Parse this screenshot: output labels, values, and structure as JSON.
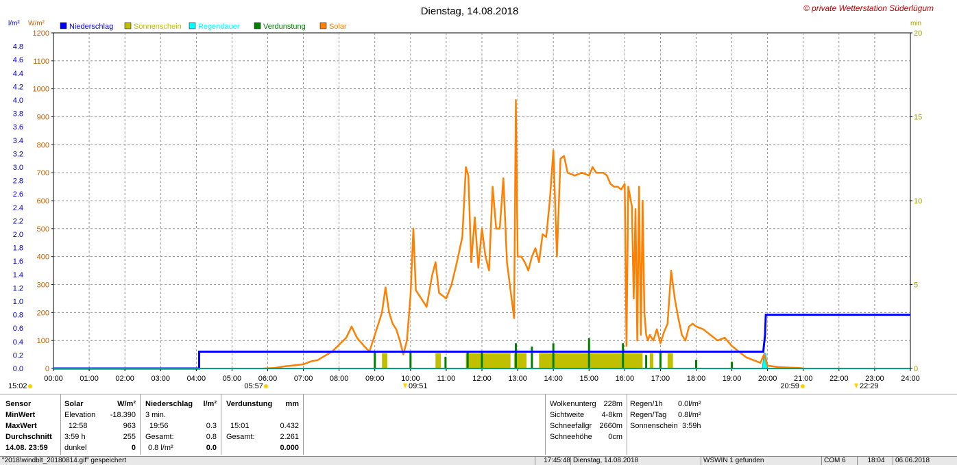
{
  "chart_data": {
    "type": "line",
    "title": "Dienstag, 14.08.2018",
    "copyright": "© private Wetterstation Süderlügum",
    "axes": {
      "left1_unit": "l/m²",
      "left2_unit": "W/m²",
      "right_unit": "min",
      "left1_ticks": [
        "4.8",
        "4.6",
        "4.4",
        "4.2",
        "4.0",
        "3.8",
        "3.6",
        "3.4",
        "3.2",
        "3.0",
        "2.8",
        "2.6",
        "2.4",
        "2.2",
        "2.0",
        "1.8",
        "1.6",
        "1.4",
        "1.2",
        "1.0",
        "0.8",
        "0.6",
        "0.4",
        "0.2",
        "0.0"
      ],
      "left1_range": [
        0,
        5.0
      ],
      "left2_ticks": [
        "1200",
        "1100",
        "1000",
        "900",
        "800",
        "700",
        "600",
        "500",
        "400",
        "300",
        "200",
        "100",
        "0"
      ],
      "left2_range": [
        0,
        1200
      ],
      "right_ticks": [
        "20",
        "15",
        "10",
        "5",
        "0"
      ],
      "right_range": [
        0,
        20
      ],
      "x_ticks": [
        "00:00",
        "01:00",
        "02:00",
        "03:00",
        "04:00",
        "05:00",
        "06:00",
        "07:00",
        "08:00",
        "09:00",
        "10:00",
        "11:00",
        "12:00",
        "13:00",
        "14:00",
        "15:00",
        "16:00",
        "17:00",
        "18:00",
        "19:00",
        "20:00",
        "21:00",
        "22:00",
        "23:00",
        "24:00"
      ],
      "x_range_hours": [
        0,
        24
      ],
      "grid": true
    },
    "legend": [
      {
        "name": "Niederschlag",
        "color": "#0000ff"
      },
      {
        "name": "Sonnenschein",
        "color": "#c0c000"
      },
      {
        "name": "Regendauer",
        "color": "#00ffff"
      },
      {
        "name": "Verdunstung",
        "color": "#008000"
      },
      {
        "name": "Solar",
        "color": "#ff8000"
      }
    ],
    "annotations": {
      "moonrise": "15:02",
      "sunrise": "05:57",
      "solar_noon": "09:51",
      "sunset": "20:59",
      "moonset": "22:29"
    },
    "niederschlag": [
      [
        0,
        0
      ],
      [
        4.08,
        0
      ],
      [
        4.08,
        0.25
      ],
      [
        19.88,
        0.25
      ],
      [
        19.93,
        0.5
      ],
      [
        19.95,
        0.8
      ],
      [
        24,
        0.8
      ]
    ],
    "solar": [
      [
        5.9,
        0
      ],
      [
        6.2,
        2
      ],
      [
        6.5,
        8
      ],
      [
        6.8,
        12
      ],
      [
        7.0,
        15
      ],
      [
        7.2,
        25
      ],
      [
        7.4,
        30
      ],
      [
        7.6,
        45
      ],
      [
        7.8,
        60
      ],
      [
        8.0,
        85
      ],
      [
        8.2,
        110
      ],
      [
        8.35,
        150
      ],
      [
        8.5,
        110
      ],
      [
        8.7,
        80
      ],
      [
        8.85,
        60
      ],
      [
        9.0,
        120
      ],
      [
        9.2,
        200
      ],
      [
        9.3,
        290
      ],
      [
        9.4,
        200
      ],
      [
        9.5,
        160
      ],
      [
        9.6,
        140
      ],
      [
        9.7,
        100
      ],
      [
        9.8,
        50
      ],
      [
        9.9,
        100
      ],
      [
        10.0,
        260
      ],
      [
        10.08,
        500
      ],
      [
        10.15,
        280
      ],
      [
        10.3,
        250
      ],
      [
        10.45,
        220
      ],
      [
        10.6,
        330
      ],
      [
        10.7,
        380
      ],
      [
        10.8,
        270
      ],
      [
        10.9,
        260
      ],
      [
        11.0,
        250
      ],
      [
        11.15,
        300
      ],
      [
        11.3,
        380
      ],
      [
        11.45,
        470
      ],
      [
        11.55,
        720
      ],
      [
        11.62,
        690
      ],
      [
        11.7,
        380
      ],
      [
        11.8,
        540
      ],
      [
        11.9,
        360
      ],
      [
        12.0,
        500
      ],
      [
        12.1,
        400
      ],
      [
        12.2,
        350
      ],
      [
        12.3,
        650
      ],
      [
        12.4,
        500
      ],
      [
        12.5,
        500
      ],
      [
        12.6,
        680
      ],
      [
        12.7,
        380
      ],
      [
        12.8,
        280
      ],
      [
        12.9,
        180
      ],
      [
        12.95,
        960
      ],
      [
        13.0,
        400
      ],
      [
        13.1,
        400
      ],
      [
        13.2,
        380
      ],
      [
        13.3,
        350
      ],
      [
        13.4,
        400
      ],
      [
        13.5,
        430
      ],
      [
        13.6,
        380
      ],
      [
        13.7,
        480
      ],
      [
        13.8,
        470
      ],
      [
        13.9,
        600
      ],
      [
        14.0,
        780
      ],
      [
        14.1,
        400
      ],
      [
        14.2,
        750
      ],
      [
        14.3,
        760
      ],
      [
        14.4,
        700
      ],
      [
        14.6,
        690
      ],
      [
        14.8,
        700
      ],
      [
        15.0,
        690
      ],
      [
        15.1,
        720
      ],
      [
        15.2,
        700
      ],
      [
        15.4,
        700
      ],
      [
        15.5,
        690
      ],
      [
        15.6,
        660
      ],
      [
        15.7,
        650
      ],
      [
        15.8,
        650
      ],
      [
        15.9,
        640
      ],
      [
        16.0,
        660
      ],
      [
        16.05,
        80
      ],
      [
        16.1,
        650
      ],
      [
        16.2,
        580
      ],
      [
        16.25,
        250
      ],
      [
        16.3,
        570
      ],
      [
        16.35,
        100
      ],
      [
        16.4,
        650
      ],
      [
        16.45,
        120
      ],
      [
        16.5,
        600
      ],
      [
        16.55,
        200
      ],
      [
        16.6,
        120
      ],
      [
        16.65,
        100
      ],
      [
        16.7,
        120
      ],
      [
        16.8,
        100
      ],
      [
        16.9,
        140
      ],
      [
        17.0,
        90
      ],
      [
        17.1,
        130
      ],
      [
        17.2,
        160
      ],
      [
        17.3,
        350
      ],
      [
        17.4,
        250
      ],
      [
        17.5,
        180
      ],
      [
        17.6,
        120
      ],
      [
        17.7,
        100
      ],
      [
        17.8,
        150
      ],
      [
        17.9,
        160
      ],
      [
        18.0,
        150
      ],
      [
        18.2,
        140
      ],
      [
        18.4,
        120
      ],
      [
        18.6,
        100
      ],
      [
        18.8,
        110
      ],
      [
        19.0,
        80
      ],
      [
        19.2,
        60
      ],
      [
        19.4,
        40
      ],
      [
        19.6,
        30
      ],
      [
        19.8,
        20
      ],
      [
        19.9,
        50
      ],
      [
        20.0,
        10
      ],
      [
        20.3,
        5
      ],
      [
        20.6,
        3
      ],
      [
        20.9,
        2
      ],
      [
        21.0,
        0
      ]
    ],
    "sonnenschein_intervals": [
      [
        9.2,
        9.35
      ],
      [
        10.7,
        10.85
      ],
      [
        11.55,
        12.8
      ],
      [
        12.9,
        13.25
      ],
      [
        13.6,
        16.5
      ],
      [
        16.7,
        16.8
      ],
      [
        17.2,
        17.35
      ]
    ],
    "sonnenschein_height": 0.9,
    "verdunstung_spikes": [
      [
        9.0,
        1
      ],
      [
        10.0,
        1
      ],
      [
        10.98,
        0.7
      ],
      [
        11.6,
        1
      ],
      [
        12.0,
        1
      ],
      [
        12.95,
        1.5
      ],
      [
        13.4,
        1.3
      ],
      [
        14.0,
        1.5
      ],
      [
        15.0,
        1.8
      ],
      [
        15.95,
        1.5
      ],
      [
        16.6,
        0.8
      ],
      [
        17.0,
        1
      ],
      [
        18.0,
        0.5
      ],
      [
        19.0,
        0.4
      ]
    ],
    "regendauer": [
      [
        19.85,
        0
      ],
      [
        19.9,
        0.9
      ],
      [
        19.95,
        0.9
      ],
      [
        20.0,
        0
      ]
    ]
  },
  "panel": {
    "sensor": {
      "header": "Sensor",
      "rows": [
        "MinWert",
        "MaxWert",
        "Durchschnitt",
        "14.08. 23:59"
      ]
    },
    "solar": {
      "header": "Solar",
      "unit": "W/m²",
      "rows": [
        [
          "Elevation",
          "-18.390"
        ],
        [
          "12:58",
          "963"
        ],
        [
          "3:59 h",
          "255"
        ],
        [
          "dunkel",
          "0"
        ]
      ]
    },
    "niederschlag": {
      "header": "Niederschlag",
      "unit": "l/m²",
      "rows": [
        [
          "3 min.",
          ""
        ],
        [
          "19:56",
          "0.3"
        ],
        [
          "Gesamt:",
          "0.8"
        ],
        [
          "0.8 l/m²",
          "0.0"
        ]
      ]
    },
    "verdunstung": {
      "header": "Verdunstung",
      "unit": "mm",
      "rows": [
        [
          "",
          ""
        ],
        [
          "15:01",
          "0.432"
        ],
        [
          "Gesamt:",
          "2.261"
        ],
        [
          "",
          "0.000"
        ]
      ]
    },
    "sky": [
      [
        "Wolkenunterg",
        "228m"
      ],
      [
        "Sichtweite",
        "4-8km"
      ],
      [
        "Schneefallgr",
        "2660m"
      ],
      [
        "Schneehöhe",
        "0cm"
      ]
    ],
    "rain": [
      [
        "Regen/1h",
        "0.0l/m²"
      ],
      [
        "Regen/Tag",
        "0.8l/m²"
      ],
      [
        "Sonnenschein",
        "3:59h"
      ]
    ]
  },
  "statusbar": {
    "file": "\"2018\\windblt_20180814.gif\" gespeichert",
    "time": "17:45:48",
    "date": "Dienstag, 14.08.2018",
    "wswin": "WSWIN 1 gefunden",
    "com": "COM 6",
    "clock": "18:04",
    "today": "06.06.2018"
  }
}
